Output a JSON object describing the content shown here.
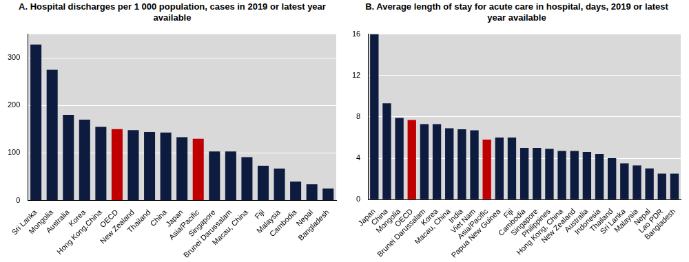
{
  "chart_data": [
    {
      "type": "bar",
      "title": "A. Hospital discharges per 1 000 population, cases in 2019 or latest year available",
      "categories": [
        "Sri Lanka",
        "Mongolia",
        "Australia",
        "Korea",
        "Hong Kong,China",
        "OECD",
        "New Zealand",
        "Thailand",
        "China",
        "Japan",
        "Asia/Pacific",
        "Singapore",
        "Brunei Darussalam",
        "Macau, China",
        "Fiji",
        "Malaysia",
        "Cambodia",
        "Nepal",
        "Bangladesh"
      ],
      "values": [
        328,
        275,
        180,
        170,
        155,
        150,
        148,
        144,
        143,
        133,
        130,
        103,
        103,
        91,
        73,
        67,
        40,
        34,
        25
      ],
      "colors": [
        "#0d1b3e",
        "#0d1b3e",
        "#0d1b3e",
        "#0d1b3e",
        "#0d1b3e",
        "#c00000",
        "#0d1b3e",
        "#0d1b3e",
        "#0d1b3e",
        "#0d1b3e",
        "#c00000",
        "#0d1b3e",
        "#0d1b3e",
        "#0d1b3e",
        "#0d1b3e",
        "#0d1b3e",
        "#0d1b3e",
        "#0d1b3e",
        "#0d1b3e"
      ],
      "ylim": [
        0,
        350
      ],
      "yticks": [
        0,
        100,
        200,
        300
      ],
      "grid": true
    },
    {
      "type": "bar",
      "title": "B. Average length of stay for acute care in hospital, days, 2019 or latest year available",
      "categories": [
        "Japan",
        "China",
        "Mongolia",
        "OECD",
        "Brunei Darussalam",
        "Korea",
        "Macau, China",
        "India",
        "Viet Nam",
        "Asia/Pacific",
        "Papua New Guinea",
        "Fiji",
        "Cambodia",
        "Singapore",
        "Philippines",
        "Hong Kong, China",
        "New Zealand",
        "Australia",
        "Indonesia",
        "Thailand",
        "Sri Lanka",
        "Malaysia",
        "Nepal",
        "Lao PDR",
        "Bangladesh"
      ],
      "values": [
        16,
        9.3,
        7.9,
        7.7,
        7.3,
        7.3,
        6.9,
        6.8,
        6.7,
        5.8,
        6.0,
        6.0,
        5.0,
        5.0,
        4.9,
        4.7,
        4.7,
        4.6,
        4.4,
        4.0,
        3.5,
        3.3,
        3.0,
        2.5,
        2.5
      ],
      "colors": [
        "#0d1b3e",
        "#0d1b3e",
        "#0d1b3e",
        "#c00000",
        "#0d1b3e",
        "#0d1b3e",
        "#0d1b3e",
        "#0d1b3e",
        "#0d1b3e",
        "#c00000",
        "#0d1b3e",
        "#0d1b3e",
        "#0d1b3e",
        "#0d1b3e",
        "#0d1b3e",
        "#0d1b3e",
        "#0d1b3e",
        "#0d1b3e",
        "#0d1b3e",
        "#0d1b3e",
        "#0d1b3e",
        "#0d1b3e",
        "#0d1b3e",
        "#0d1b3e",
        "#0d1b3e"
      ],
      "ylim": [
        0,
        16
      ],
      "yticks": [
        0,
        4,
        8,
        12,
        16
      ],
      "grid": true
    }
  ]
}
